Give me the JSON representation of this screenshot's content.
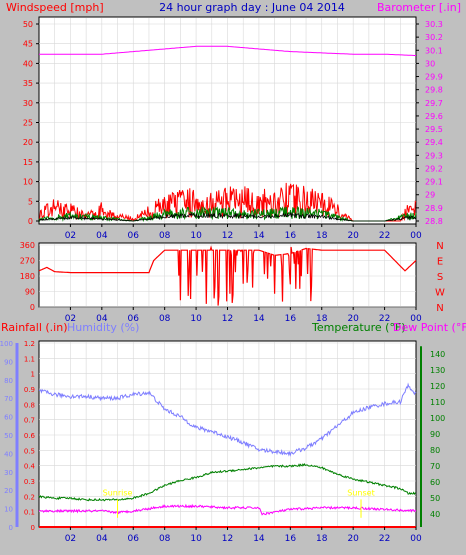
{
  "colors": {
    "background": "#c0c0c0",
    "plot": "#ffffff",
    "wind": "#ff0000",
    "wind_avg": "#008000",
    "wind_dark": "#000000",
    "baro": "#ff00ff",
    "direction": "#ff0000",
    "rain": "#ff0000",
    "humidity": "#7f7fff",
    "temperature": "#008000",
    "dewpoint": "#ff00ff",
    "grid": "#c0c0c0",
    "time_axis": "#0000c0",
    "sun_marker": "#ffff00"
  },
  "chart_data": [
    {
      "type": "line",
      "panel": "wind_baro",
      "title": "24 hour graph day : June 04 2014",
      "left_axis_label": "Windspeed [mph]",
      "right_axis_label": "Barometer [.in]",
      "left_ticks": [
        "0",
        "5",
        "10",
        "15",
        "20",
        "25",
        "30",
        "35",
        "40",
        "45",
        "50"
      ],
      "right_ticks": [
        "28.8",
        "28.9",
        "29",
        "29.1",
        "29.2",
        "29.3",
        "29.4",
        "29.5",
        "29.6",
        "29.7",
        "29.8",
        "29.9",
        "30",
        "30.1",
        "30.2",
        "30.3"
      ],
      "ylim_left": [
        0,
        50
      ],
      "ylim_right": [
        28.8,
        30.3
      ],
      "x_ticks": [
        "02",
        "04",
        "06",
        "08",
        "10",
        "12",
        "14",
        "16",
        "18",
        "20",
        "22",
        "00"
      ],
      "x_hours": [
        0,
        2,
        4,
        6,
        8,
        10,
        12,
        14,
        16,
        18,
        20,
        22,
        24
      ],
      "barometer": {
        "x": [
          0,
          2,
          4,
          6,
          8,
          10,
          12,
          14,
          16,
          18,
          20,
          22,
          24
        ],
        "y": [
          30.07,
          30.07,
          30.07,
          30.09,
          30.11,
          30.13,
          30.13,
          30.11,
          30.09,
          30.08,
          30.07,
          30.07,
          30.06
        ]
      },
      "windspeed_gust_envelope": {
        "x": [
          0,
          1,
          2,
          3,
          4,
          5,
          6,
          7,
          8,
          9,
          10,
          11,
          12,
          13,
          14,
          15,
          16,
          17,
          18,
          19,
          20,
          21,
          22,
          23,
          23.5,
          24
        ],
        "y": [
          3,
          6,
          5,
          2,
          5,
          2,
          1,
          4,
          7,
          8,
          9,
          8,
          9,
          9,
          8,
          9,
          10,
          9,
          8,
          5,
          0,
          0,
          0,
          0,
          6,
          5
        ]
      },
      "windspeed_avg_envelope": {
        "x": [
          0,
          2,
          4,
          6,
          7,
          8,
          10,
          12,
          14,
          16,
          18,
          19,
          20,
          22,
          23.5,
          24
        ],
        "y": [
          0.5,
          1.5,
          1,
          0,
          1,
          2,
          2.5,
          2.5,
          2,
          2.5,
          2,
          1,
          0,
          0,
          1.5,
          1.5
        ]
      }
    },
    {
      "type": "scatter",
      "panel": "wind_direction",
      "left_ticks": [
        "0",
        "90",
        "180",
        "270",
        "360"
      ],
      "right_ticks": [
        "N",
        "W",
        "S",
        "E",
        "N"
      ],
      "ylim": [
        0,
        360
      ],
      "direction": {
        "x": [
          0,
          0.5,
          1,
          2,
          4,
          6,
          7,
          7.3,
          8,
          10,
          12,
          13,
          14,
          15,
          16,
          17,
          18,
          20,
          22,
          23.3,
          24
        ],
        "y": [
          210,
          230,
          205,
          200,
          200,
          200,
          200,
          270,
          330,
          330,
          330,
          330,
          330,
          300,
          310,
          340,
          330,
          330,
          330,
          210,
          270
        ]
      }
    },
    {
      "type": "line",
      "panel": "rain_humidity_temp",
      "legend": [
        "Rainfall (.in)",
        "Humidity (%)",
        "Temperature (°F)",
        "Dew Point (°F)"
      ],
      "rain_ticks": [
        "0",
        "0.1",
        "0.2",
        "0.3",
        "0.4",
        "0.5",
        "0.6",
        "0.7",
        "0.8",
        "0.9",
        "1",
        "1.1",
        "1.2"
      ],
      "humidity_ticks": [
        "0",
        "10",
        "20",
        "30",
        "40",
        "50",
        "60",
        "70",
        "80",
        "90",
        "100"
      ],
      "temperature_ticks": [
        "40",
        "50",
        "60",
        "70",
        "80",
        "90",
        "100",
        "110",
        "120",
        "130",
        "140"
      ],
      "ylim_rain": [
        0,
        1.2
      ],
      "ylim_humidity": [
        0,
        100
      ],
      "ylim_temperature": [
        32,
        147
      ],
      "sun_labels": [
        "Sunrise",
        "Sunset"
      ],
      "sun_times": [
        5.0,
        20.5
      ],
      "humidity": {
        "x": [
          0,
          1,
          2,
          3,
          4,
          5,
          6,
          7,
          8,
          9,
          10,
          11,
          12,
          13,
          14,
          15,
          16,
          17,
          18,
          19,
          20,
          21,
          22,
          23,
          23.5,
          24
        ],
        "y": [
          74,
          72,
          71,
          71,
          70,
          70,
          72,
          73,
          64,
          60,
          54,
          52,
          49,
          46,
          42,
          41,
          40,
          43,
          48,
          55,
          62,
          65,
          67,
          68,
          77,
          72
        ]
      },
      "temperature": {
        "x": [
          0,
          1,
          2,
          3,
          4,
          5,
          6,
          7,
          8,
          9,
          10,
          11,
          12,
          13,
          14,
          15,
          16,
          17,
          18,
          19,
          20,
          21,
          22,
          23,
          23.5,
          24
        ],
        "y": [
          51,
          50,
          50,
          49,
          49,
          49,
          50,
          53,
          58,
          61,
          63,
          66,
          67,
          68,
          69,
          70,
          70,
          71,
          69,
          65,
          62,
          60,
          58,
          56,
          53,
          53
        ]
      },
      "dewpoint": {
        "x": [
          0,
          2,
          4,
          5,
          6,
          8,
          10,
          12,
          14,
          14.2,
          16,
          18,
          20,
          22,
          24
        ],
        "y": [
          42,
          42,
          42,
          41,
          42,
          45,
          45,
          44,
          44,
          40,
          43,
          44,
          44,
          43,
          42
        ]
      },
      "rainfall": {
        "x": [
          0,
          24
        ],
        "y": [
          0,
          0
        ]
      }
    }
  ]
}
